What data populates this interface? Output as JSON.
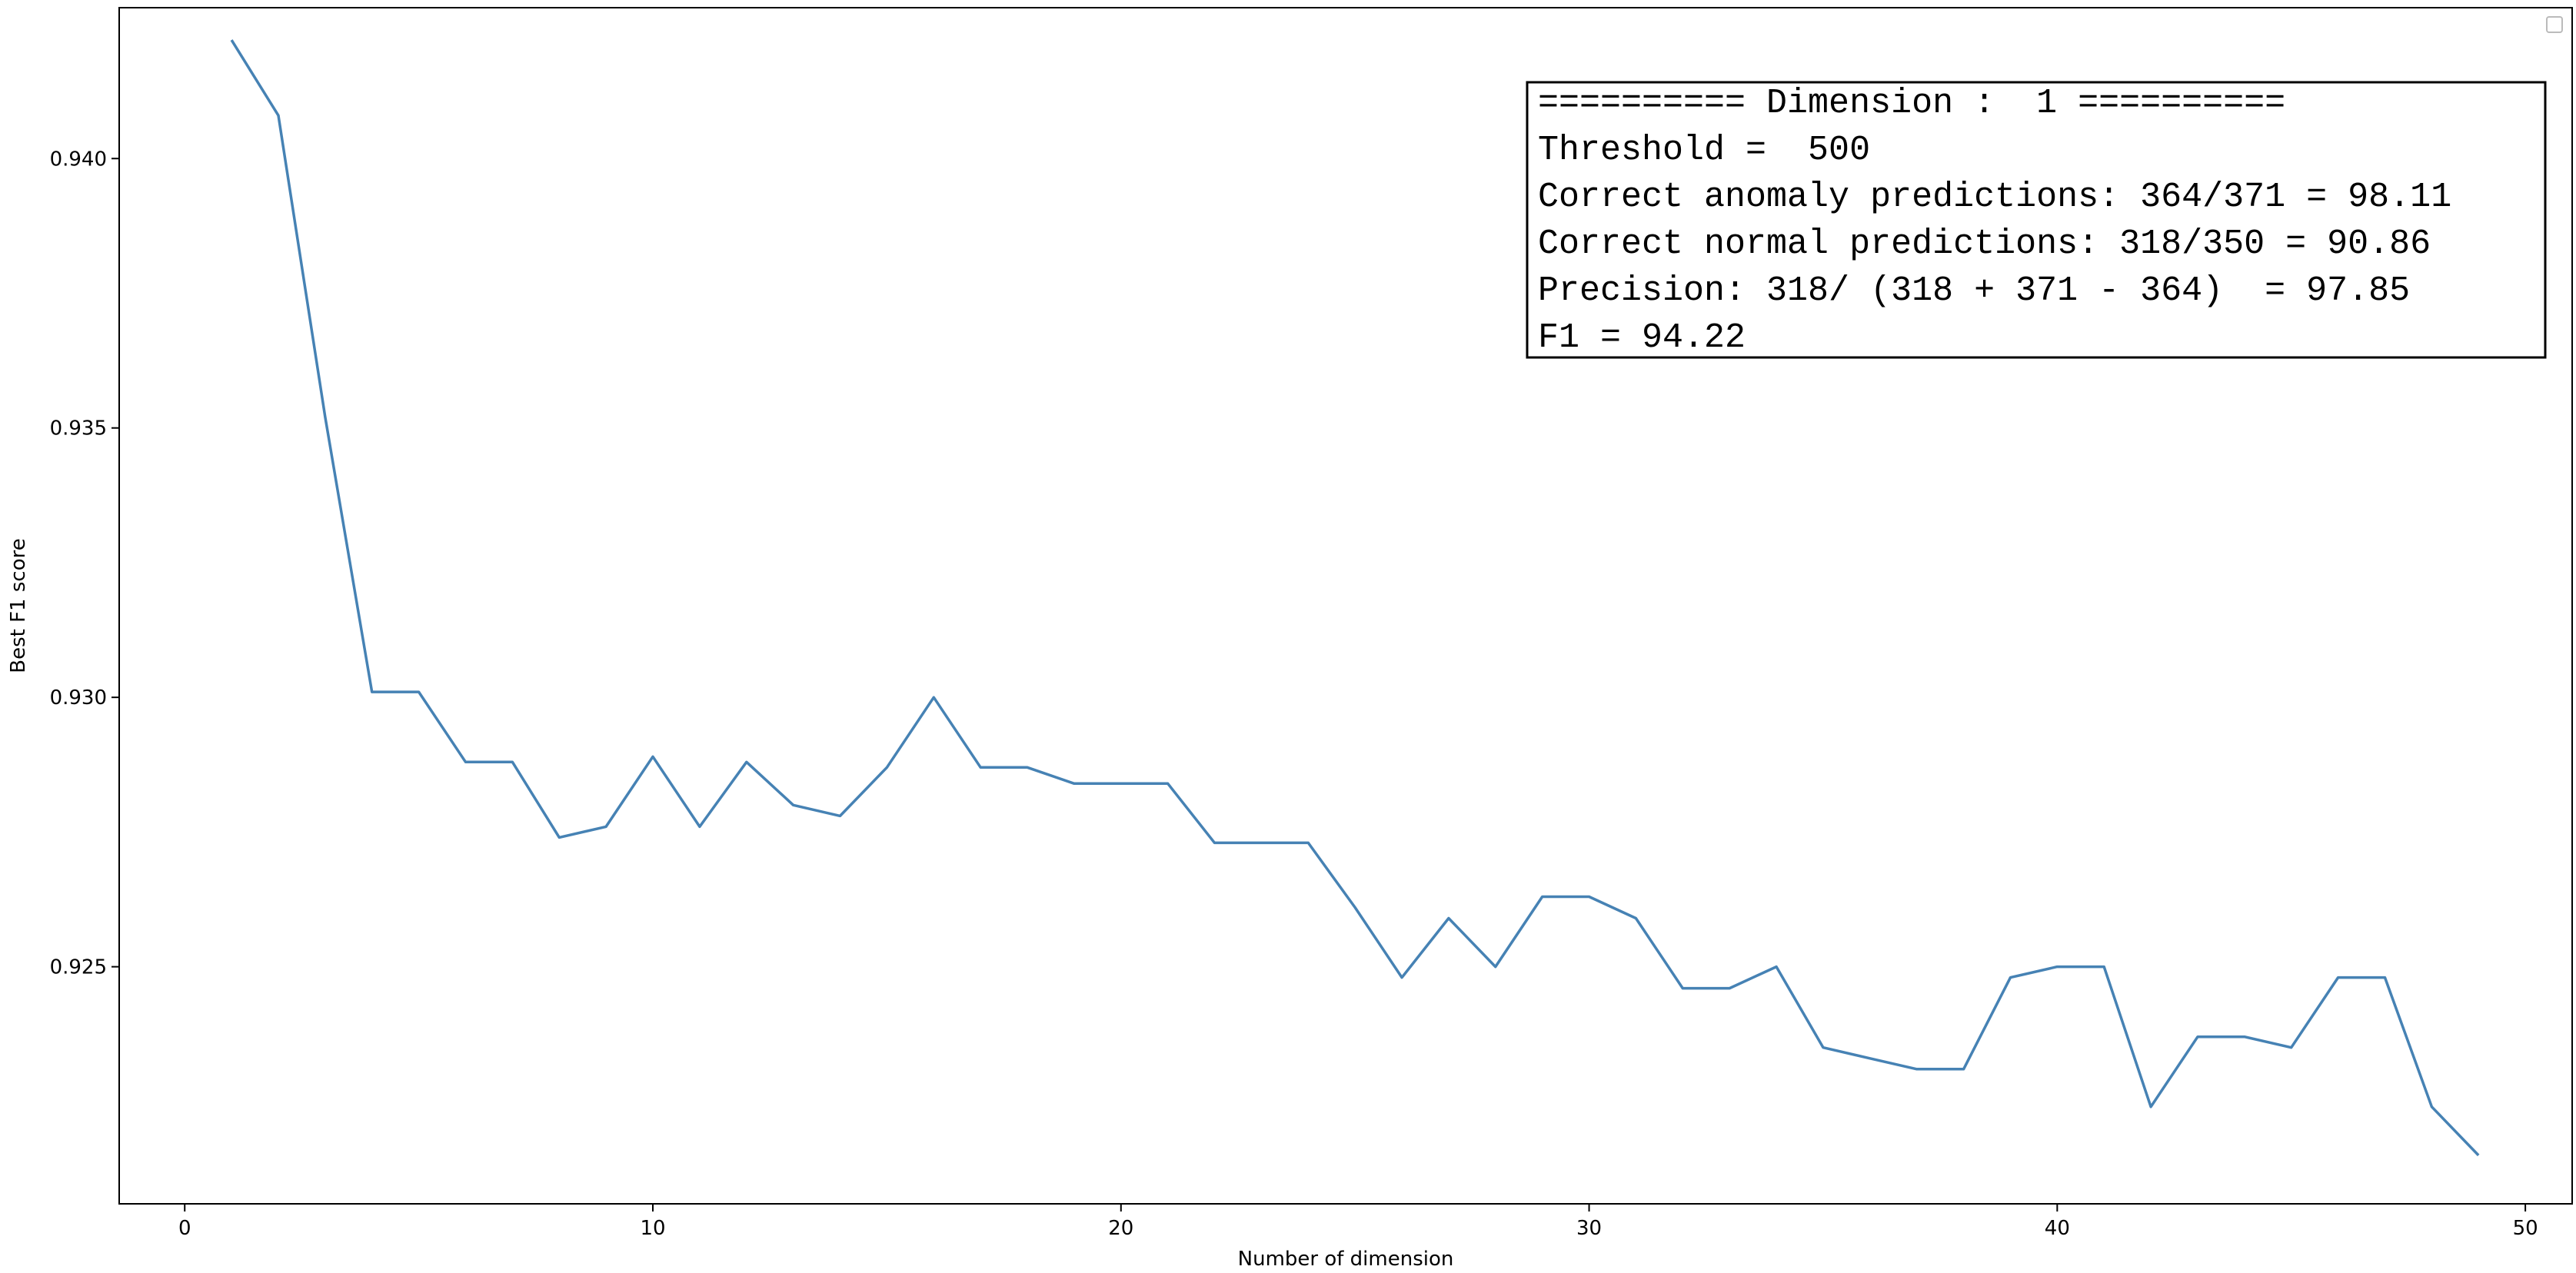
{
  "chart_data": {
    "type": "line",
    "title": "",
    "xlabel": "Number of dimension",
    "ylabel": "Best F1 score",
    "xlim": [
      -1.4,
      51.0
    ],
    "ylim": [
      0.9206,
      0.9428
    ],
    "xticks": [
      0,
      10,
      20,
      30,
      40,
      50
    ],
    "yticks": [
      0.925,
      0.93,
      0.935,
      0.94
    ],
    "ytick_labels": [
      "0.925",
      "0.930",
      "0.935",
      "0.940"
    ],
    "grid": false,
    "series": [
      {
        "color": "#4682b4",
        "x": [
          1,
          2,
          3,
          4,
          5,
          6,
          7,
          8,
          9,
          10,
          11,
          12,
          13,
          14,
          15,
          16,
          17,
          18,
          19,
          20,
          21,
          22,
          23,
          24,
          25,
          26,
          27,
          28,
          29,
          30,
          31,
          32,
          33,
          34,
          35,
          36,
          37,
          38,
          39,
          40,
          41,
          42,
          43,
          44,
          45,
          46,
          47,
          48,
          49
        ],
        "y": [
          0.9422,
          0.9408,
          0.9352,
          0.9301,
          0.9301,
          0.9288,
          0.9288,
          0.9274,
          0.9276,
          0.9289,
          0.9276,
          0.9288,
          0.928,
          0.9278,
          0.9287,
          0.93,
          0.9287,
          0.9287,
          0.9284,
          0.9284,
          0.9284,
          0.9273,
          0.9273,
          0.9273,
          0.9261,
          0.9248,
          0.9259,
          0.925,
          0.9263,
          0.9263,
          0.9259,
          0.9246,
          0.9246,
          0.925,
          0.9235,
          0.9233,
          0.9231,
          0.9231,
          0.9248,
          0.925,
          0.925,
          0.9224,
          0.9237,
          0.9237,
          0.9235,
          0.9248,
          0.9248,
          0.9224,
          0.9215
        ]
      }
    ],
    "annotation": {
      "lines": [
        "========== Dimension :  1 ==========",
        "Threshold =  500",
        "Correct anomaly predictions: 364/371 = 98.11",
        "Correct normal predictions: 318/350 = 90.86",
        "Precision: 318/ (318 + 371 - 364)  = 97.85",
        "F1 = 94.22"
      ]
    }
  }
}
